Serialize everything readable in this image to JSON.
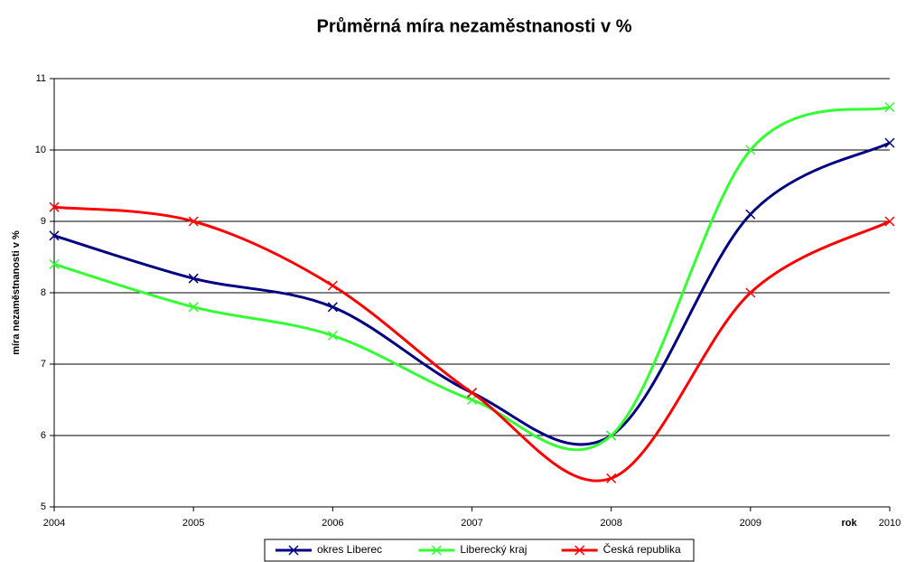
{
  "chart_data": {
    "type": "line",
    "title": "Průměrná míra nezaměstnanosti v %",
    "y_label": "míra nezaměstnanosti v %",
    "x_label": "rok",
    "x": [
      2004,
      2005,
      2006,
      2007,
      2008,
      2009,
      2010
    ],
    "xlim": [
      2004,
      2010
    ],
    "xticks": [
      2004,
      2005,
      2006,
      2007,
      2008,
      2009,
      2010
    ],
    "ylim": [
      5,
      11
    ],
    "yticks": [
      5,
      6,
      7,
      8,
      9,
      10,
      11
    ],
    "grid": true,
    "smooth": true,
    "legend": "bottom",
    "series": [
      {
        "name": "okres Liberec",
        "color": "#000080",
        "values": [
          8.8,
          8.2,
          7.8,
          6.6,
          6.0,
          9.1,
          10.1
        ]
      },
      {
        "name": "Liberecký kraj",
        "color": "#33ff33",
        "values": [
          8.4,
          7.8,
          7.4,
          6.5,
          6.0,
          10.0,
          10.6
        ]
      },
      {
        "name": "Česká republika",
        "color": "#ff0000",
        "values": [
          9.2,
          9.0,
          8.1,
          6.6,
          5.4,
          8.0,
          9.0
        ]
      }
    ]
  }
}
